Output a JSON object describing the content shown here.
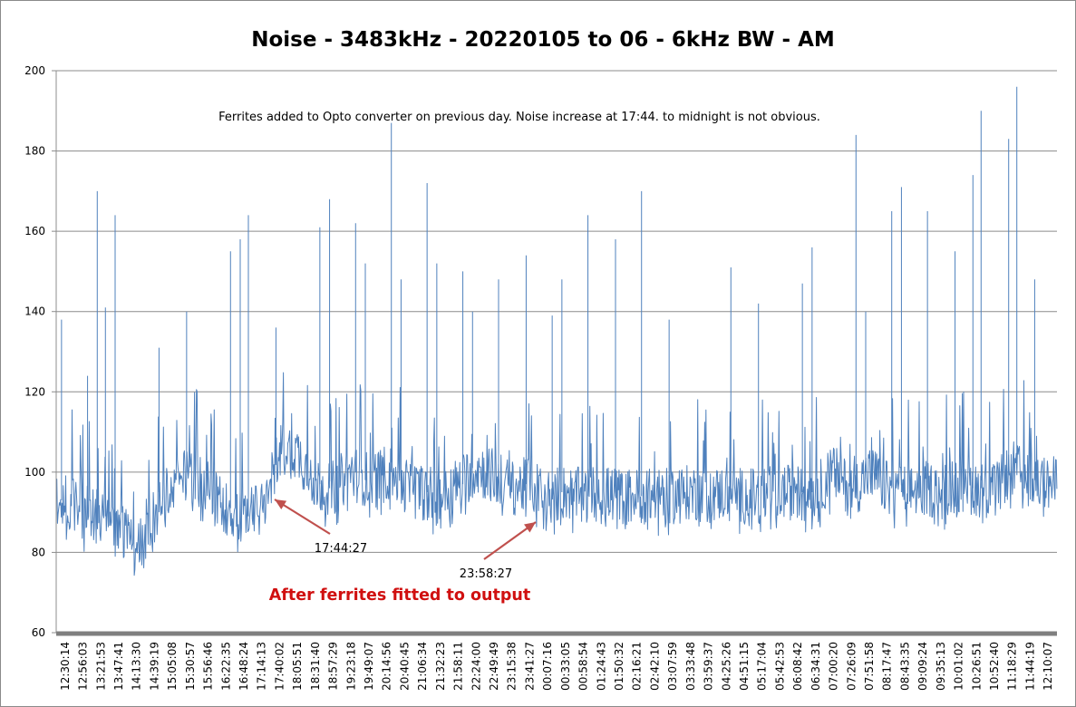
{
  "chart_data": {
    "type": "line",
    "title": "Noise - 3483kHz - 20220105 to 06 - 6kHz BW - AM",
    "xlabel": "",
    "ylabel": "",
    "ylim": [
      60,
      200
    ],
    "yticks": [
      60,
      80,
      100,
      120,
      140,
      160,
      180,
      200
    ],
    "grid": true,
    "legend": "none",
    "line_color": "#4f81bd",
    "x_tick_labels": [
      "12:30:14",
      "12:56:03",
      "13:21:53",
      "13:47:41",
      "14:13:30",
      "14:39:19",
      "15:05:08",
      "15:30:57",
      "15:56:46",
      "16:22:35",
      "16:48:24",
      "17:14:13",
      "17:40:02",
      "18:05:51",
      "18:31:40",
      "18:57:29",
      "19:23:18",
      "19:49:07",
      "20:14:56",
      "20:40:45",
      "21:06:34",
      "21:32:23",
      "21:58:11",
      "22:24:00",
      "22:49:49",
      "23:15:38",
      "23:41:27",
      "00:07:16",
      "00:33:05",
      "00:58:54",
      "01:24:43",
      "01:50:32",
      "02:16:21",
      "02:42:10",
      "03:07:59",
      "03:33:48",
      "03:59:37",
      "04:25:26",
      "04:51:15",
      "05:17:04",
      "05:42:53",
      "06:08:42",
      "06:34:31",
      "07:00:20",
      "07:26:09",
      "07:51:58",
      "08:17:47",
      "08:43:35",
      "09:09:24",
      "09:35:13",
      "10:01:02",
      "10:26:51",
      "10:52:40",
      "11:18:29",
      "11:44:19",
      "12:10:07"
    ],
    "baseline": [
      {
        "label": "12:30:14",
        "value": 93
      },
      {
        "label": "12:56:03",
        "value": 90
      },
      {
        "label": "13:21:53",
        "value": 89
      },
      {
        "label": "13:47:41",
        "value": 88
      },
      {
        "label": "14:13:30",
        "value": 79
      },
      {
        "label": "14:39:19",
        "value": 90
      },
      {
        "label": "15:05:08",
        "value": 96
      },
      {
        "label": "15:30:57",
        "value": 100
      },
      {
        "label": "15:56:46",
        "value": 96
      },
      {
        "label": "16:22:35",
        "value": 91
      },
      {
        "label": "16:48:24",
        "value": 89
      },
      {
        "label": "17:14:13",
        "value": 90
      },
      {
        "label": "17:40:02",
        "value": 106
      },
      {
        "label": "18:05:51",
        "value": 105
      },
      {
        "label": "18:31:40",
        "value": 97
      },
      {
        "label": "18:57:29",
        "value": 96
      },
      {
        "label": "19:23:18",
        "value": 100
      },
      {
        "label": "19:49:07",
        "value": 98
      },
      {
        "label": "20:14:56",
        "value": 100
      },
      {
        "label": "20:40:45",
        "value": 97
      },
      {
        "label": "21:06:34",
        "value": 95
      },
      {
        "label": "21:32:23",
        "value": 94
      },
      {
        "label": "21:58:11",
        "value": 97
      },
      {
        "label": "22:24:00",
        "value": 101
      },
      {
        "label": "22:49:49",
        "value": 99
      },
      {
        "label": "23:15:38",
        "value": 96
      },
      {
        "label": "23:41:27",
        "value": 97
      },
      {
        "label": "00:07:16",
        "value": 94
      },
      {
        "label": "00:33:05",
        "value": 95
      },
      {
        "label": "00:58:54",
        "value": 94
      },
      {
        "label": "01:24:43",
        "value": 95
      },
      {
        "label": "01:50:32",
        "value": 94
      },
      {
        "label": "02:16:21",
        "value": 94
      },
      {
        "label": "02:42:10",
        "value": 94
      },
      {
        "label": "03:07:59",
        "value": 94
      },
      {
        "label": "03:33:48",
        "value": 95
      },
      {
        "label": "03:59:37",
        "value": 94
      },
      {
        "label": "04:25:26",
        "value": 95
      },
      {
        "label": "04:51:15",
        "value": 94
      },
      {
        "label": "05:17:04",
        "value": 94
      },
      {
        "label": "05:42:53",
        "value": 95
      },
      {
        "label": "06:08:42",
        "value": 95
      },
      {
        "label": "06:34:31",
        "value": 95
      },
      {
        "label": "07:00:20",
        "value": 100
      },
      {
        "label": "07:26:09",
        "value": 95
      },
      {
        "label": "07:51:58",
        "value": 100
      },
      {
        "label": "08:17:47",
        "value": 96
      },
      {
        "label": "08:43:35",
        "value": 95
      },
      {
        "label": "09:09:24",
        "value": 96
      },
      {
        "label": "09:35:13",
        "value": 95
      },
      {
        "label": "10:01:02",
        "value": 97
      },
      {
        "label": "10:26:51",
        "value": 96
      },
      {
        "label": "10:52:40",
        "value": 95
      },
      {
        "label": "11:18:29",
        "value": 101
      },
      {
        "label": "11:44:19",
        "value": 98
      },
      {
        "label": "12:10:07",
        "value": 97
      }
    ],
    "spikes": [
      {
        "label": "12:30:14",
        "value": 138
      },
      {
        "label": "12:56:03",
        "value": 124
      },
      {
        "label": "13:21:53",
        "value": 170
      },
      {
        "label": "13:21:53",
        "value": 141
      },
      {
        "label": "13:47:41",
        "value": 164
      },
      {
        "label": "14:39:19",
        "value": 131
      },
      {
        "label": "15:30:57",
        "value": 140
      },
      {
        "label": "16:22:35",
        "value": 155
      },
      {
        "label": "16:48:24",
        "value": 158
      },
      {
        "label": "16:48:24",
        "value": 164
      },
      {
        "label": "17:40:02",
        "value": 136
      },
      {
        "label": "18:31:40",
        "value": 161
      },
      {
        "label": "18:57:29",
        "value": 168
      },
      {
        "label": "19:23:18",
        "value": 162
      },
      {
        "label": "19:49:07",
        "value": 152
      },
      {
        "label": "20:14:56",
        "value": 187
      },
      {
        "label": "20:40:45",
        "value": 148
      },
      {
        "label": "21:06:34",
        "value": 172
      },
      {
        "label": "21:32:23",
        "value": 152
      },
      {
        "label": "21:58:11",
        "value": 150
      },
      {
        "label": "22:24:00",
        "value": 140
      },
      {
        "label": "22:49:49",
        "value": 148
      },
      {
        "label": "23:41:27",
        "value": 154
      },
      {
        "label": "00:07:16",
        "value": 139
      },
      {
        "label": "00:33:05",
        "value": 148
      },
      {
        "label": "00:58:54",
        "value": 164
      },
      {
        "label": "01:50:32",
        "value": 158
      },
      {
        "label": "02:16:21",
        "value": 170
      },
      {
        "label": "03:07:59",
        "value": 138
      },
      {
        "label": "04:25:26",
        "value": 151
      },
      {
        "label": "05:17:04",
        "value": 142
      },
      {
        "label": "06:08:42",
        "value": 147
      },
      {
        "label": "06:34:31",
        "value": 156
      },
      {
        "label": "07:26:09",
        "value": 184
      },
      {
        "label": "07:51:58",
        "value": 140
      },
      {
        "label": "08:17:47",
        "value": 165
      },
      {
        "label": "08:43:35",
        "value": 171
      },
      {
        "label": "09:09:24",
        "value": 165
      },
      {
        "label": "10:01:02",
        "value": 155
      },
      {
        "label": "10:26:51",
        "value": 190
      },
      {
        "label": "10:26:51",
        "value": 174
      },
      {
        "label": "11:18:29",
        "value": 196
      },
      {
        "label": "11:18:29",
        "value": 183
      },
      {
        "label": "11:44:19",
        "value": 148
      }
    ],
    "annotations": {
      "note": "Ferrites added to Opto converter on previous day. Noise increase at 17:44. to midnight is not obvious.",
      "arrow1_label": "17:44:27",
      "arrow2_label": "23:58:27",
      "caption": "After ferrites fitted to output",
      "caption_color": "#d01010",
      "arrow_color": "#c0504d"
    }
  }
}
